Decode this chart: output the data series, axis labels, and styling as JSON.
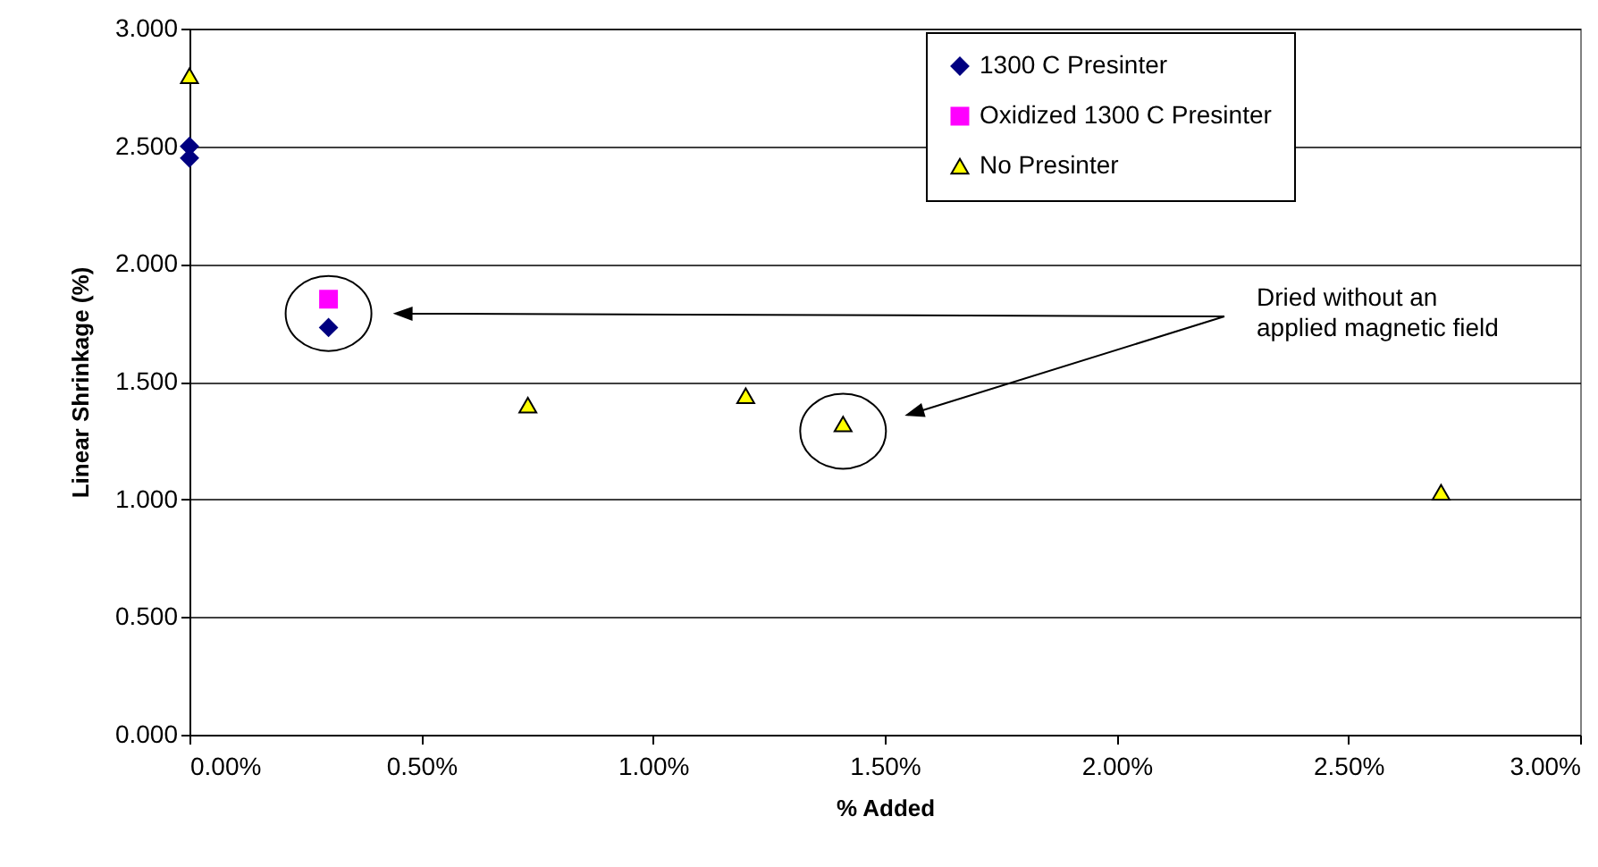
{
  "chart_data": {
    "type": "scatter",
    "xlabel": "% Added",
    "ylabel": "Linear Shrinkage (%)",
    "xlim": [
      0,
      3
    ],
    "xticks": [
      {
        "value": 0,
        "label": "0.00%"
      },
      {
        "value": 0.5,
        "label": "0.50%"
      },
      {
        "value": 1,
        "label": "1.00%"
      },
      {
        "value": 1.5,
        "label": "1.50%"
      },
      {
        "value": 2,
        "label": "2.00%"
      },
      {
        "value": 2.5,
        "label": "2.50%"
      },
      {
        "value": 3,
        "label": "3.00%"
      }
    ],
    "ylim": [
      0,
      3
    ],
    "yticks": [
      {
        "value": 0,
        "label": "0.000"
      },
      {
        "value": 0.5,
        "label": "0.500"
      },
      {
        "value": 1,
        "label": "1.000"
      },
      {
        "value": 1.5,
        "label": "1.500"
      },
      {
        "value": 2,
        "label": "2.000"
      },
      {
        "value": 2.5,
        "label": "2.500"
      },
      {
        "value": 3,
        "label": "3.000"
      }
    ],
    "grid": "y",
    "legend": "top right",
    "annotations": [
      "Dried without an applied magnetic field"
    ],
    "series": [
      {
        "name": "1300 C Presinter",
        "color": "#000080",
        "marker": "diamond",
        "x": [
          0,
          0,
          0.3
        ],
        "values": [
          2.5,
          2.45,
          1.73
        ]
      },
      {
        "name": "Oxidized 1300 C Presinter",
        "color": "#ff00ff",
        "marker": "square",
        "x": [
          0.3
        ],
        "values": [
          1.85
        ]
      },
      {
        "name": "No Presinter",
        "color": "#ffff00",
        "marker": "triangle",
        "x": [
          0,
          0.73,
          1.2,
          1.41,
          2.7
        ],
        "values": [
          2.8,
          1.4,
          1.44,
          1.32,
          1.03
        ]
      }
    ]
  }
}
